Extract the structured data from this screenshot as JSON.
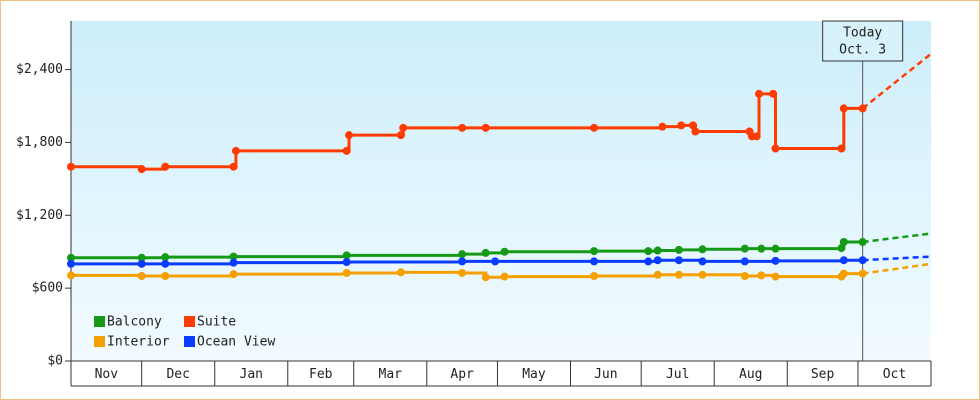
{
  "chart_data": {
    "type": "step-line",
    "xlim": [
      0,
      365
    ],
    "ylim": [
      0,
      2800
    ],
    "xticks": [
      {
        "value": 0,
        "label": "Nov"
      },
      {
        "value": 30,
        "label": "Dec"
      },
      {
        "value": 61,
        "label": "Jan"
      },
      {
        "value": 92,
        "label": "Feb"
      },
      {
        "value": 120,
        "label": "Mar"
      },
      {
        "value": 151,
        "label": "Apr"
      },
      {
        "value": 181,
        "label": "May"
      },
      {
        "value": 212,
        "label": "Jun"
      },
      {
        "value": 242,
        "label": "Jul"
      },
      {
        "value": 273,
        "label": "Aug"
      },
      {
        "value": 304,
        "label": "Sep"
      },
      {
        "value": 334,
        "label": "Oct"
      }
    ],
    "yticks": [
      {
        "value": 0,
        "label": "$0"
      },
      {
        "value": 600,
        "label": "$600"
      },
      {
        "value": 1200,
        "label": "$1,200"
      },
      {
        "value": 1800,
        "label": "$1,800"
      },
      {
        "value": 2400,
        "label": "$2,400"
      }
    ],
    "today": {
      "x": 336,
      "label": "Today",
      "date": "Oct. 3"
    },
    "series": [
      {
        "name": "Balcony",
        "color": "#159a15",
        "x": [
          0,
          30,
          40,
          69,
          117,
          166,
          176,
          184,
          222,
          245,
          249,
          258,
          268,
          286,
          293,
          299,
          327,
          328,
          336,
          365
        ],
        "values": [
          850,
          850,
          855,
          860,
          870,
          880,
          890,
          900,
          905,
          905,
          910,
          915,
          920,
          925,
          925,
          925,
          930,
          980,
          980,
          1050
        ]
      },
      {
        "name": "Suite",
        "color": "#ff3c00",
        "x": [
          0,
          30,
          40,
          69,
          70,
          117,
          118,
          140,
          141,
          166,
          176,
          222,
          251,
          259,
          264,
          265,
          288,
          289,
          291,
          292,
          298,
          299,
          327,
          328,
          336,
          365
        ],
        "values": [
          1600,
          1580,
          1600,
          1600,
          1730,
          1730,
          1860,
          1860,
          1920,
          1920,
          1920,
          1920,
          1930,
          1940,
          1940,
          1890,
          1890,
          1850,
          1850,
          2200,
          2200,
          1750,
          1750,
          2080,
          2080,
          2530
        ]
      },
      {
        "name": "Interior",
        "color": "#f5a000",
        "x": [
          0,
          30,
          40,
          69,
          117,
          140,
          166,
          176,
          184,
          222,
          249,
          258,
          268,
          286,
          293,
          299,
          327,
          328,
          336,
          365
        ],
        "values": [
          705,
          700,
          700,
          715,
          725,
          730,
          725,
          690,
          695,
          700,
          710,
          710,
          710,
          700,
          705,
          695,
          695,
          720,
          720,
          800
        ]
      },
      {
        "name": "Ocean View",
        "color": "#0a3cff",
        "x": [
          0,
          30,
          40,
          69,
          117,
          166,
          180,
          222,
          245,
          249,
          258,
          268,
          286,
          299,
          328,
          336,
          365
        ],
        "values": [
          800,
          800,
          800,
          810,
          815,
          820,
          820,
          820,
          820,
          830,
          830,
          820,
          820,
          825,
          830,
          830,
          860
        ]
      }
    ]
  }
}
